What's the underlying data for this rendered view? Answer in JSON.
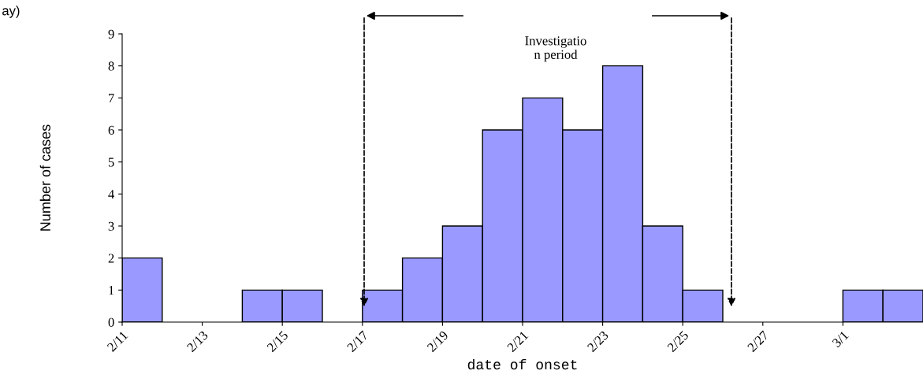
{
  "chart_data": {
    "type": "bar",
    "xlabel": "date of onset",
    "ylabel": "Number of cases",
    "categories": [
      "2/11",
      null,
      "2/13",
      null,
      "2/15",
      null,
      "2/17",
      null,
      "2/19",
      null,
      "2/21",
      null,
      "2/23",
      null,
      "2/25",
      null,
      "2/27",
      null,
      "3/1",
      null
    ],
    "values": [
      2,
      0,
      0,
      1,
      1,
      0,
      1,
      2,
      3,
      6,
      7,
      6,
      8,
      3,
      1,
      0,
      0,
      0,
      1,
      1
    ],
    "color": "#9999ff",
    "ylim": [
      0,
      9
    ],
    "yticks": [
      0,
      1,
      2,
      3,
      4,
      5,
      6,
      7,
      8,
      9
    ],
    "grid": false,
    "annotations": [
      "Investigatio\nn period",
      "ay)"
    ]
  }
}
